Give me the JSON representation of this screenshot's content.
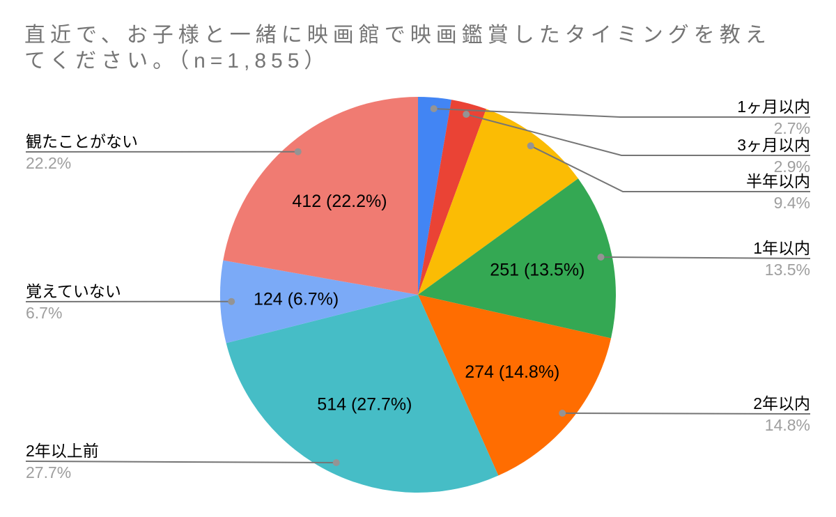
{
  "title": "直近で、お子様と一緒に映画館で映画鑑賞したタイミングを教えてください。（n=1,855）",
  "colors": {
    "background": "#ffffff",
    "title_text": "#757575",
    "callout_label": "#000000",
    "callout_percent": "#9e9e9e",
    "leader_line": "#757575",
    "leader_dot": "#949494",
    "slice_inside_label": "#000000"
  },
  "chart_data": {
    "type": "pie",
    "title": "直近で、お子様と一緒に映画館で映画鑑賞したタイミングを教えてください。（n=1,855）",
    "sample_size_label": "n=1,855",
    "legend_position": "labeled-callouts",
    "start_angle": "12-oclock-clockwise",
    "slices": [
      {
        "label": "1ヶ月以内",
        "pct": 2.7,
        "percent_label": "2.7%",
        "color": "#4285F4",
        "inside_label": null,
        "count": null
      },
      {
        "label": "3ヶ月以内",
        "pct": 2.9,
        "percent_label": "2.9%",
        "color": "#EA4335",
        "inside_label": null,
        "count": null
      },
      {
        "label": "半年以内",
        "pct": 9.4,
        "percent_label": "9.4%",
        "color": "#FBBC04",
        "inside_label": null,
        "count": null
      },
      {
        "label": "1年以内",
        "pct": 13.5,
        "percent_label": "13.5%",
        "color": "#34A853",
        "inside_label": "251 (13.5%)",
        "count": 251
      },
      {
        "label": "2年以内",
        "pct": 14.8,
        "percent_label": "14.8%",
        "color": "#FF6D01",
        "inside_label": "274 (14.8%)",
        "count": 274
      },
      {
        "label": "2年以上前",
        "pct": 27.7,
        "percent_label": "27.7%",
        "color": "#46BDC6",
        "inside_label": "514 (27.7%)",
        "count": 514
      },
      {
        "label": "覚えていない",
        "pct": 6.7,
        "percent_label": "6.7%",
        "color": "#7BAAF7",
        "inside_label": "124 (6.7%)",
        "count": 124
      },
      {
        "label": "観たことがない",
        "pct": 22.2,
        "percent_label": "22.2%",
        "color": "#F07B72",
        "inside_label": "412 (22.2%)",
        "count": 412
      }
    ]
  }
}
